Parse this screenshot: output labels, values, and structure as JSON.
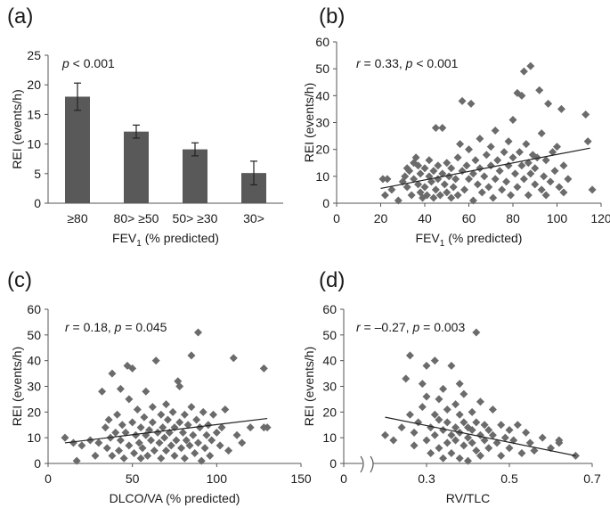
{
  "chart_data": [
    {
      "panel": "(a)",
      "type": "bar",
      "categories": [
        "≥80",
        "80> ≥50",
        "50> ≥30",
        "30>"
      ],
      "values": [
        18.0,
        12.1,
        9.1,
        5.1
      ],
      "errors": [
        2.3,
        1.1,
        1.1,
        2.0
      ],
      "stat_prefix": "p",
      "stat_rest": " < 0.001",
      "xlabel_main": "FEV",
      "xlabel_sub": "1",
      "xlabel_rest": " (% predicted)",
      "ylabel": "REI (events/h)",
      "ylim": [
        0,
        25
      ],
      "yticks": [
        "0",
        "5",
        "10",
        "15",
        "20",
        "25"
      ]
    },
    {
      "panel": "(b)",
      "type": "scatter",
      "stat_r": "r",
      "stat_mid": " = 0.33, ",
      "stat_p": "p",
      "stat_rest": " < 0.001",
      "xlabel_main": "FEV",
      "xlabel_sub": "1",
      "xlabel_rest": " (% predicted)",
      "ylabel": "REI (events/h)",
      "xlim": [
        0,
        120
      ],
      "ylim": [
        0,
        60
      ],
      "xticks": [
        "0",
        "20",
        "40",
        "60",
        "80",
        "100",
        "120"
      ],
      "yticks": [
        "0",
        "10",
        "20",
        "30",
        "40",
        "50",
        "60"
      ],
      "trend": [
        [
          20,
          5.5
        ],
        [
          115,
          20.5
        ]
      ],
      "points": [
        [
          21,
          9
        ],
        [
          22,
          3
        ],
        [
          23,
          9
        ],
        [
          25,
          5
        ],
        [
          28,
          1
        ],
        [
          30,
          8
        ],
        [
          31,
          10
        ],
        [
          32,
          13
        ],
        [
          32,
          6
        ],
        [
          33,
          12
        ],
        [
          34,
          3
        ],
        [
          35,
          15
        ],
        [
          35,
          9
        ],
        [
          36,
          17
        ],
        [
          37,
          7
        ],
        [
          37,
          14
        ],
        [
          38,
          4
        ],
        [
          38,
          11
        ],
        [
          39,
          2
        ],
        [
          40,
          13
        ],
        [
          40,
          6
        ],
        [
          41,
          3
        ],
        [
          42,
          10
        ],
        [
          42,
          16
        ],
        [
          43,
          8
        ],
        [
          44,
          12
        ],
        [
          44,
          2
        ],
        [
          45,
          28
        ],
        [
          45,
          5
        ],
        [
          46,
          14
        ],
        [
          46,
          9
        ],
        [
          47,
          3
        ],
        [
          48,
          11
        ],
        [
          48,
          28
        ],
        [
          49,
          7
        ],
        [
          50,
          4
        ],
        [
          50,
          15
        ],
        [
          51,
          10
        ],
        [
          52,
          2
        ],
        [
          52,
          13
        ],
        [
          53,
          6
        ],
        [
          54,
          9
        ],
        [
          55,
          17
        ],
        [
          55,
          3
        ],
        [
          56,
          22
        ],
        [
          57,
          12
        ],
        [
          57,
          38
        ],
        [
          58,
          5
        ],
        [
          59,
          14
        ],
        [
          60,
          20
        ],
        [
          60,
          9
        ],
        [
          61,
          37
        ],
        [
          62,
          11
        ],
        [
          62,
          1
        ],
        [
          63,
          16
        ],
        [
          64,
          7
        ],
        [
          65,
          13
        ],
        [
          65,
          24
        ],
        [
          66,
          4
        ],
        [
          67,
          10
        ],
        [
          68,
          18
        ],
        [
          69,
          6
        ],
        [
          70,
          14
        ],
        [
          70,
          21
        ],
        [
          71,
          2
        ],
        [
          72,
          27
        ],
        [
          72,
          9
        ],
        [
          73,
          16
        ],
        [
          74,
          12
        ],
        [
          75,
          5
        ],
        [
          76,
          19
        ],
        [
          77,
          8
        ],
        [
          78,
          14
        ],
        [
          78,
          23
        ],
        [
          79,
          3
        ],
        [
          80,
          17
        ],
        [
          80,
          31
        ],
        [
          81,
          11
        ],
        [
          82,
          41
        ],
        [
          82,
          6
        ],
        [
          83,
          19
        ],
        [
          84,
          14
        ],
        [
          84,
          40
        ],
        [
          85,
          9
        ],
        [
          85,
          49
        ],
        [
          86,
          22
        ],
        [
          87,
          15
        ],
        [
          87,
          3
        ],
        [
          88,
          51
        ],
        [
          88,
          11
        ],
        [
          89,
          18
        ],
        [
          90,
          7
        ],
        [
          90,
          13
        ],
        [
          91,
          17
        ],
        [
          92,
          42
        ],
        [
          93,
          5
        ],
        [
          93,
          26
        ],
        [
          94,
          10
        ],
        [
          95,
          16
        ],
        [
          95,
          3
        ],
        [
          96,
          37
        ],
        [
          97,
          8
        ],
        [
          98,
          19
        ],
        [
          99,
          12
        ],
        [
          100,
          21
        ],
        [
          101,
          6
        ],
        [
          102,
          35
        ],
        [
          103,
          14
        ],
        [
          103,
          4
        ],
        [
          105,
          9
        ],
        [
          113,
          33
        ],
        [
          114,
          23
        ],
        [
          116,
          5
        ]
      ]
    },
    {
      "panel": "(c)",
      "type": "scatter",
      "stat_r": "r",
      "stat_mid": " = 0.18, ",
      "stat_p": "p",
      "stat_rest": " = 0.045",
      "xlabel": "DLCO/VA (% predicted)",
      "ylabel": "REI (events/h)",
      "xlim": [
        0,
        150
      ],
      "ylim": [
        0,
        60
      ],
      "xticks": [
        "0",
        "50",
        "100",
        "150"
      ],
      "yticks": [
        "0",
        "10",
        "20",
        "30",
        "40",
        "50",
        "60"
      ],
      "trend": [
        [
          10,
          8
        ],
        [
          130,
          17.5
        ]
      ],
      "points": [
        [
          10,
          10
        ],
        [
          15,
          8
        ],
        [
          17,
          1
        ],
        [
          20,
          7
        ],
        [
          25,
          9
        ],
        [
          28,
          3
        ],
        [
          30,
          8
        ],
        [
          32,
          28
        ],
        [
          34,
          14
        ],
        [
          35,
          6
        ],
        [
          36,
          17
        ],
        [
          37,
          10
        ],
        [
          38,
          3
        ],
        [
          38,
          35
        ],
        [
          40,
          12
        ],
        [
          41,
          19
        ],
        [
          42,
          5
        ],
        [
          43,
          9
        ],
        [
          43,
          29
        ],
        [
          44,
          15
        ],
        [
          45,
          2
        ],
        [
          46,
          12
        ],
        [
          47,
          38
        ],
        [
          48,
          7
        ],
        [
          48,
          25
        ],
        [
          50,
          37
        ],
        [
          50,
          16
        ],
        [
          51,
          4
        ],
        [
          52,
          11
        ],
        [
          53,
          21
        ],
        [
          54,
          8
        ],
        [
          55,
          14
        ],
        [
          55,
          2
        ],
        [
          56,
          6
        ],
        [
          57,
          18
        ],
        [
          58,
          11
        ],
        [
          58,
          28
        ],
        [
          59,
          3
        ],
        [
          60,
          13
        ],
        [
          61,
          9
        ],
        [
          62,
          16
        ],
        [
          62,
          22
        ],
        [
          63,
          5
        ],
        [
          64,
          40
        ],
        [
          65,
          12
        ],
        [
          66,
          8
        ],
        [
          67,
          19
        ],
        [
          67,
          2
        ],
        [
          68,
          14
        ],
        [
          69,
          10
        ],
        [
          70,
          23
        ],
        [
          70,
          5
        ],
        [
          71,
          17
        ],
        [
          72,
          12
        ],
        [
          73,
          7
        ],
        [
          74,
          20
        ],
        [
          75,
          3
        ],
        [
          75,
          14
        ],
        [
          76,
          9
        ],
        [
          77,
          32
        ],
        [
          78,
          16
        ],
        [
          78,
          30
        ],
        [
          79,
          6
        ],
        [
          80,
          12
        ],
        [
          81,
          19
        ],
        [
          81,
          2
        ],
        [
          82,
          9
        ],
        [
          83,
          15
        ],
        [
          84,
          7
        ],
        [
          85,
          22
        ],
        [
          85,
          42
        ],
        [
          86,
          11
        ],
        [
          87,
          4
        ],
        [
          88,
          17
        ],
        [
          89,
          51
        ],
        [
          89,
          8
        ],
        [
          90,
          14
        ],
        [
          91,
          1
        ],
        [
          92,
          20
        ],
        [
          93,
          6
        ],
        [
          94,
          11
        ],
        [
          95,
          15
        ],
        [
          96,
          3
        ],
        [
          97,
          9
        ],
        [
          98,
          19
        ],
        [
          100,
          12
        ],
        [
          102,
          7
        ],
        [
          103,
          14
        ],
        [
          105,
          21
        ],
        [
          107,
          5
        ],
        [
          110,
          41
        ],
        [
          112,
          11
        ],
        [
          115,
          8
        ],
        [
          120,
          14
        ],
        [
          128,
          37
        ],
        [
          128,
          14
        ],
        [
          130,
          14
        ]
      ]
    },
    {
      "panel": "(d)",
      "type": "scatter",
      "stat_r": "r",
      "stat_mid": " = –0.27, ",
      "stat_p": "p",
      "stat_rest": " = 0.003",
      "xlabel": "RV/TLC",
      "ylabel": "REI (events/h)",
      "xaxis_break": true,
      "xlim": [
        0.1,
        0.7
      ],
      "ylim": [
        0,
        60
      ],
      "xticks": [
        "0",
        "0.3",
        "0.5",
        "0.7"
      ],
      "yticks": [
        "0",
        "10",
        "20",
        "30",
        "40",
        "50",
        "60"
      ],
      "trend": [
        [
          0.2,
          18
        ],
        [
          0.66,
          3
        ]
      ],
      "points": [
        [
          0.2,
          11
        ],
        [
          0.22,
          9
        ],
        [
          0.24,
          14
        ],
        [
          0.25,
          33
        ],
        [
          0.26,
          42
        ],
        [
          0.26,
          19
        ],
        [
          0.27,
          12
        ],
        [
          0.27,
          7
        ],
        [
          0.28,
          16
        ],
        [
          0.29,
          22
        ],
        [
          0.29,
          31
        ],
        [
          0.3,
          9
        ],
        [
          0.3,
          26
        ],
        [
          0.3,
          38
        ],
        [
          0.31,
          14
        ],
        [
          0.31,
          4
        ],
        [
          0.32,
          19
        ],
        [
          0.32,
          40
        ],
        [
          0.32,
          11
        ],
        [
          0.33,
          25
        ],
        [
          0.33,
          6
        ],
        [
          0.33,
          17
        ],
        [
          0.34,
          13
        ],
        [
          0.34,
          2
        ],
        [
          0.34,
          29
        ],
        [
          0.35,
          8
        ],
        [
          0.35,
          21
        ],
        [
          0.35,
          16
        ],
        [
          0.36,
          11
        ],
        [
          0.36,
          38
        ],
        [
          0.36,
          4
        ],
        [
          0.37,
          14
        ],
        [
          0.37,
          23
        ],
        [
          0.37,
          9
        ],
        [
          0.38,
          19
        ],
        [
          0.38,
          2
        ],
        [
          0.38,
          12
        ],
        [
          0.38,
          31
        ],
        [
          0.39,
          7
        ],
        [
          0.39,
          16
        ],
        [
          0.39,
          27
        ],
        [
          0.4,
          10
        ],
        [
          0.4,
          14
        ],
        [
          0.4,
          1
        ],
        [
          0.41,
          20
        ],
        [
          0.41,
          8
        ],
        [
          0.41,
          13
        ],
        [
          0.42,
          51
        ],
        [
          0.42,
          16
        ],
        [
          0.42,
          5
        ],
        [
          0.43,
          11
        ],
        [
          0.43,
          24
        ],
        [
          0.43,
          3
        ],
        [
          0.44,
          15
        ],
        [
          0.44,
          9
        ],
        [
          0.45,
          13
        ],
        [
          0.45,
          6
        ],
        [
          0.46,
          21
        ],
        [
          0.46,
          11
        ],
        [
          0.47,
          8
        ],
        [
          0.48,
          15
        ],
        [
          0.48,
          3
        ],
        [
          0.49,
          10
        ],
        [
          0.5,
          13
        ],
        [
          0.5,
          6
        ],
        [
          0.51,
          9
        ],
        [
          0.52,
          15
        ],
        [
          0.53,
          4
        ],
        [
          0.54,
          12
        ],
        [
          0.55,
          8
        ],
        [
          0.56,
          5
        ],
        [
          0.58,
          10
        ],
        [
          0.6,
          6
        ],
        [
          0.62,
          8
        ],
        [
          0.62,
          9
        ],
        [
          0.66,
          3
        ]
      ]
    }
  ]
}
